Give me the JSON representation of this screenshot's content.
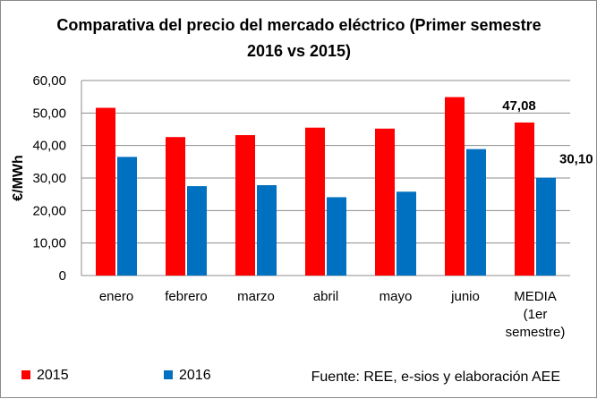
{
  "chart_data": {
    "type": "bar",
    "title": [
      "Comparativa del precio del mercado eléctrico (Primer semestre",
      "2016 vs 2015)"
    ],
    "ylabel": "€/MWh",
    "xlabel": "",
    "ylim": [
      0,
      60
    ],
    "yticks": [
      "0",
      "10,00",
      "20,00",
      "30,00",
      "40,00",
      "50,00",
      "60,00"
    ],
    "grid": true,
    "legend_position": "bottom-left",
    "categories": [
      [
        "enero"
      ],
      [
        "febrero"
      ],
      [
        "marzo"
      ],
      [
        "abril"
      ],
      [
        "mayo"
      ],
      [
        "junio"
      ],
      [
        "MEDIA",
        "(1er",
        "semestre)"
      ]
    ],
    "series": [
      {
        "name": "2015",
        "color": "#ff0000",
        "values": [
          51.6,
          42.6,
          43.2,
          45.5,
          45.2,
          54.9,
          47.08
        ]
      },
      {
        "name": "2016",
        "color": "#0070c0",
        "values": [
          36.5,
          27.5,
          27.8,
          24.1,
          25.8,
          38.9,
          30.1
        ]
      }
    ],
    "data_labels": [
      {
        "series": 0,
        "index": 6,
        "text": "47,08"
      },
      {
        "series": 1,
        "index": 6,
        "text": "30,10"
      }
    ],
    "source": "Fuente: REE, e-sios y elaboración AEE"
  }
}
